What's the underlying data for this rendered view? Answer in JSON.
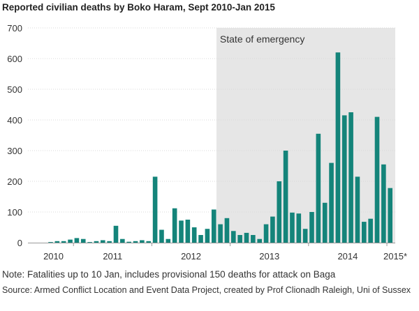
{
  "title": "Reported civilian deaths by Boko Haram, Sept 2010-Jan 2015",
  "note": "Note: Fatalities up to 10 Jan, includes provisional 150 deaths for attack on Baga",
  "source": "Source: Armed Conflict Location and Event Data Project, created by Prof Clionadh Raleigh, Uni of Sussex",
  "colors": {
    "bar": "#14847a",
    "shade": "#e6e6e6",
    "grid": "#ffffff",
    "axis": "#999999"
  },
  "chart_data": {
    "type": "bar",
    "title": "Reported civilian deaths by Boko Haram, Sept 2010-Jan 2015",
    "xlabel": "",
    "ylabel": "",
    "ylim": [
      0,
      700
    ],
    "yticks": [
      0,
      100,
      200,
      300,
      400,
      500,
      600,
      700
    ],
    "grid": true,
    "xtick_labels": [
      "2010",
      "2011",
      "2012",
      "2013",
      "2014",
      "2015*"
    ],
    "annotation": {
      "label": "State of emergency",
      "start_index": 26
    },
    "categories": [
      "Sep 2010",
      "Oct 2010",
      "Nov 2010",
      "Dec 2010",
      "Jan 2011",
      "Feb 2011",
      "Mar 2011",
      "Apr 2011",
      "May 2011",
      "Jun 2011",
      "Jul 2011",
      "Aug 2011",
      "Sep 2011",
      "Oct 2011",
      "Nov 2011",
      "Dec 2011",
      "Jan 2012",
      "Feb 2012",
      "Mar 2012",
      "Apr 2012",
      "May 2012",
      "Jun 2012",
      "Jul 2012",
      "Aug 2012",
      "Sep 2012",
      "Oct 2012",
      "Nov 2012",
      "Dec 2012",
      "Jan 2013",
      "Feb 2013",
      "Mar 2013",
      "Apr 2013",
      "May 2013",
      "Jun 2013",
      "Jul 2013",
      "Aug 2013",
      "Sep 2013",
      "Oct 2013",
      "Nov 2013",
      "Dec 2013",
      "Jan 2014",
      "Feb 2014",
      "Mar 2014",
      "Apr 2014",
      "May 2014",
      "Jun 2014",
      "Jul 2014",
      "Aug 2014",
      "Sep 2014",
      "Oct 2014",
      "Nov 2014",
      "Dec 2014",
      "Jan 2015"
    ],
    "values": [
      2,
      5,
      5,
      10,
      15,
      12,
      2,
      5,
      8,
      5,
      55,
      12,
      3,
      5,
      8,
      5,
      215,
      42,
      12,
      112,
      72,
      75,
      50,
      25,
      45,
      108,
      60,
      80,
      38,
      25,
      32,
      25,
      12,
      60,
      85,
      200,
      300,
      98,
      95,
      45,
      100,
      355,
      130,
      260,
      620,
      415,
      425,
      215,
      68,
      78,
      410,
      255,
      178
    ]
  }
}
